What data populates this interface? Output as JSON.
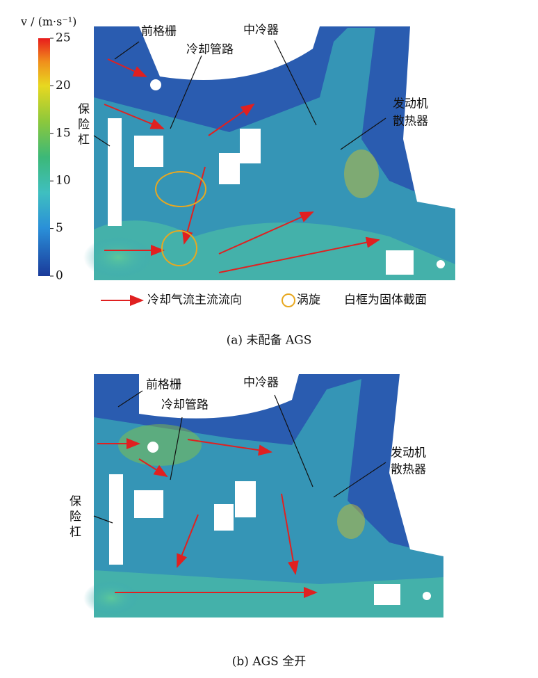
{
  "colorbar": {
    "label": "v / (m·s⁻¹)",
    "lim": [
      0,
      25
    ],
    "ticks": [
      0,
      5,
      10,
      15,
      20,
      25
    ]
  },
  "panels": [
    {
      "grille": "前格栅",
      "pipe": "冷却管路",
      "intercooler": "中冷器",
      "radiator": [
        "发动机",
        "散热器"
      ],
      "bumper": [
        "保",
        "险",
        "杠"
      ],
      "caption": "(a)  未配备 AGS"
    },
    {
      "grille": "前格栅",
      "pipe": "冷却管路",
      "intercooler": "中冷器",
      "radiator": [
        "发动机",
        "散热器"
      ],
      "bumper": [
        "保",
        "险",
        "杠"
      ],
      "caption": "(b)  AGS 全开"
    }
  ],
  "legend": {
    "arrow": "冷却气流主流流向",
    "vortex": "涡旋",
    "solid": "白框为固体截面"
  }
}
